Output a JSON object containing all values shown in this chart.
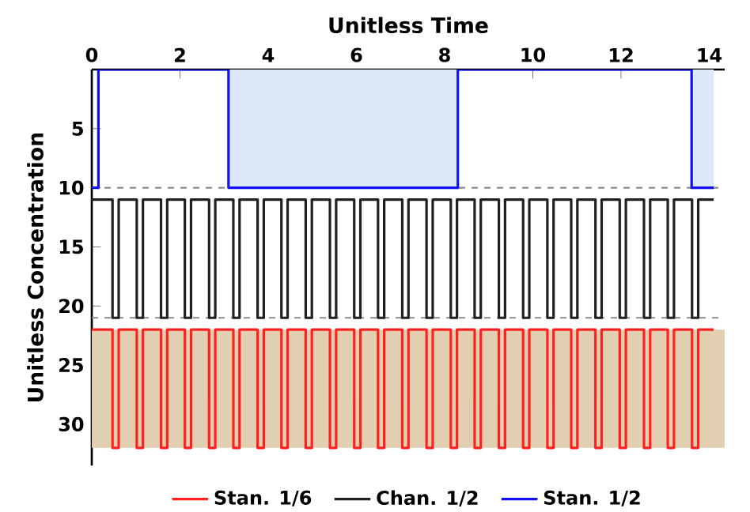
{
  "chart_data": {
    "type": "step",
    "xlabel": "Unitless Time",
    "ylabel": "Unitless Concentration",
    "xlim": [
      0,
      14.35
    ],
    "ylim": [
      33.5,
      0
    ],
    "xticks": [
      0,
      2,
      4,
      6,
      8,
      10,
      12,
      14
    ],
    "yticks": [
      5,
      10,
      15,
      20,
      25,
      30
    ],
    "legend": "bottom",
    "grid": false,
    "ref_lines": [
      {
        "axis": "y",
        "value": 10,
        "color": "#8c8c8c",
        "line_style": "dashed"
      },
      {
        "axis": "y",
        "value": 21,
        "color": "#8c8c8c",
        "line_style": "dashed"
      }
    ],
    "bands": [
      {
        "axis": "y",
        "from": 22,
        "to": 32,
        "color": "#e2cfb2"
      },
      {
        "axis": "x",
        "from": 3.1,
        "to": 8.3,
        "color": "#dbe9fb"
      },
      {
        "axis": "x",
        "from": 13.6,
        "to": 14.1,
        "color": "#dbe9fb"
      }
    ],
    "series": [
      {
        "name": "Stan. 1/6",
        "color": "#ff2020",
        "x": [
          0,
          0.47,
          0.61,
          1.02,
          1.16,
          1.57,
          1.71,
          2.11,
          2.25,
          2.66,
          2.8,
          3.21,
          3.35,
          3.76,
          3.9,
          4.3,
          4.44,
          4.85,
          4.99,
          5.4,
          5.54,
          5.95,
          6.09,
          6.49,
          6.63,
          7.04,
          7.18,
          7.59,
          7.73,
          8.14,
          8.28,
          8.68,
          8.82,
          9.23,
          9.37,
          9.78,
          9.92,
          10.33,
          10.47,
          10.87,
          11.01,
          11.42,
          11.56,
          11.97,
          12.11,
          12.52,
          12.66,
          13.06,
          13.2,
          13.61,
          13.75,
          14.1
        ],
        "values": [
          22,
          32,
          22,
          32,
          22,
          32,
          22,
          32,
          22,
          32,
          22,
          32,
          22,
          32,
          22,
          32,
          22,
          32,
          22,
          32,
          22,
          32,
          22,
          32,
          22,
          32,
          22,
          32,
          22,
          32,
          22,
          32,
          22,
          32,
          22,
          32,
          22,
          32,
          22,
          32,
          22,
          32,
          22,
          32,
          22,
          32,
          22,
          32,
          22,
          32,
          22,
          22
        ]
      },
      {
        "name": "Chan. 1/2",
        "color": "#202020",
        "x": [
          0,
          0.47,
          0.61,
          1.02,
          1.16,
          1.57,
          1.71,
          2.11,
          2.25,
          2.66,
          2.8,
          3.21,
          3.35,
          3.76,
          3.9,
          4.3,
          4.44,
          4.85,
          4.99,
          5.4,
          5.54,
          5.95,
          6.09,
          6.49,
          6.63,
          7.04,
          7.18,
          7.59,
          7.73,
          8.14,
          8.28,
          8.68,
          8.82,
          9.23,
          9.37,
          9.78,
          9.92,
          10.33,
          10.47,
          10.87,
          11.01,
          11.42,
          11.56,
          11.97,
          12.11,
          12.52,
          12.66,
          13.06,
          13.2,
          13.61,
          13.75,
          14.1
        ],
        "values": [
          11,
          21,
          11,
          21,
          11,
          21,
          11,
          21,
          11,
          21,
          11,
          21,
          11,
          21,
          11,
          21,
          11,
          21,
          11,
          21,
          11,
          21,
          11,
          21,
          11,
          21,
          11,
          21,
          11,
          21,
          11,
          21,
          11,
          21,
          11,
          21,
          11,
          21,
          11,
          21,
          11,
          21,
          11,
          21,
          11,
          21,
          11,
          21,
          11,
          21,
          11,
          11
        ]
      },
      {
        "name": "Stan. 1/2",
        "color": "#1010f0",
        "x": [
          0,
          0.15,
          3.1,
          8.3,
          13.6,
          14.1
        ],
        "values": [
          10,
          0,
          10,
          0,
          10,
          10
        ]
      }
    ]
  }
}
